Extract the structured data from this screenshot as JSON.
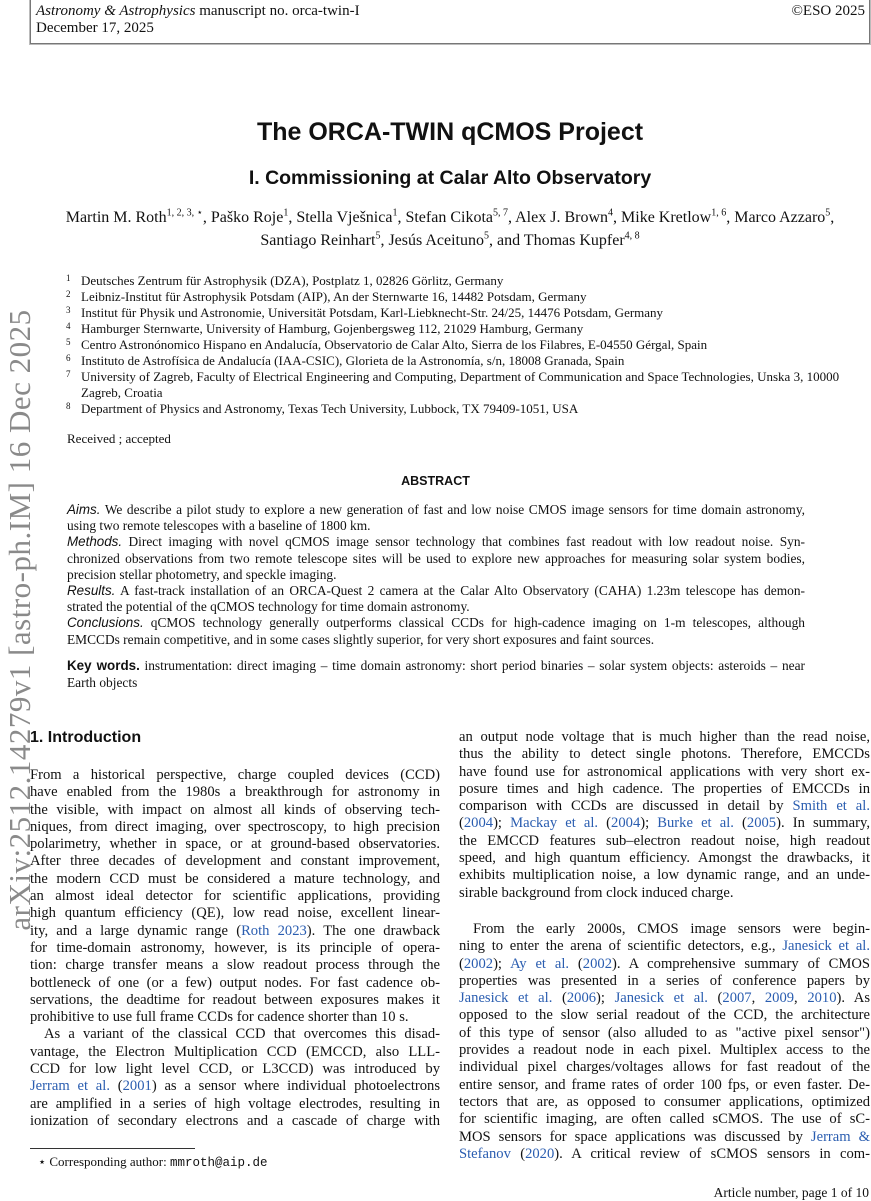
{
  "header": {
    "journal": "Astronomy & Astrophysics",
    "manuscript": " manuscript no. orca-twin-I",
    "date": "December 17, 2025",
    "copyright": "©ESO 2025"
  },
  "arxiv_stamp": "arXiv:2512.14279v1  [astro-ph.IM]  16 Dec 2025",
  "title": "The ORCA-TWIN qCMOS Project",
  "subtitle": "I. Commissioning at Calar Alto Observatory",
  "authors": [
    {
      "name": "Martin M. Roth",
      "aff": "1, 2, 3, ⋆"
    },
    {
      "name": "Paško Roje",
      "aff": "1"
    },
    {
      "name": "Stella Vješnica",
      "aff": "1"
    },
    {
      "name": "Stefan Cikota",
      "aff": "5, 7"
    },
    {
      "name": "Alex J. Brown",
      "aff": "4"
    },
    {
      "name": "Mike Kretlow",
      "aff": "1, 6"
    },
    {
      "name": "Marco Azzaro",
      "aff": "5"
    },
    {
      "name": "Santiago Reinhart",
      "aff": "5"
    },
    {
      "name": "Jesús Aceituno",
      "aff": "5"
    },
    {
      "name": "and Thomas Kupfer",
      "aff": "4, 8"
    }
  ],
  "affiliations": [
    {
      "n": "1",
      "text": "Deutsches Zentrum für Astrophysik (DZA), Postplatz 1, 02826 Görlitz, Germany"
    },
    {
      "n": "2",
      "text": "Leibniz-Institut für Astrophysik Potsdam (AIP), An der Sternwarte 16, 14482 Potsdam, Germany"
    },
    {
      "n": "3",
      "text": "Institut für Physik und Astronomie, Universität Potsdam, Karl-Liebknecht-Str. 24/25, 14476 Potsdam, Germany"
    },
    {
      "n": "4",
      "text": "Hamburger Sternwarte, University of Hamburg, Gojenbergsweg 112, 21029 Hamburg, Germany"
    },
    {
      "n": "5",
      "text": "Centro Astronónomico Hispano en Andalucía, Observatorio de Calar Alto, Sierra de los Filabres, E-04550 Gérgal, Spain"
    },
    {
      "n": "6",
      "text": "Instituto de Astrofísica de Andalucía (IAA-CSIC), Glorieta de la Astronomía, s/n, 18008 Granada, Spain"
    },
    {
      "n": "7",
      "text": "University of Zagreb, Faculty of Electrical Engineering and Computing, Department of Communication and Space Technologies, Unska 3, 10000 Zagreb, Croatia"
    },
    {
      "n": "8",
      "text": "Department of Physics and Astronomy, Texas Tech University, Lubbock, TX 79409-1051, USA"
    }
  ],
  "received": "Received ; accepted",
  "abstract_heading": "ABSTRACT",
  "abstract_lines": [
    {
      "s": [
        {
          "t": "Aims.",
          "k": "lbl"
        },
        {
          "t": " We describe a pilot study to explore a new generation of fast and low noise CMOS image sensors for time domain astronomy,"
        }
      ]
    },
    {
      "last": true,
      "s": [
        {
          "t": "using two remote telescopes with a baseline of 1800 km."
        }
      ]
    },
    {
      "s": [
        {
          "t": "Methods.",
          "k": "lbl"
        },
        {
          "t": " Direct imaging with novel qCMOS image sensor technology that combines fast readout with low readout noise. Syn-"
        }
      ]
    },
    {
      "s": [
        {
          "t": "chronized observations from two remote telescope sites will be used to explore new approaches for measuring solar system bodies,"
        }
      ]
    },
    {
      "last": true,
      "s": [
        {
          "t": "precision stellar photometry, and speckle imaging."
        }
      ]
    },
    {
      "s": [
        {
          "t": "Results.",
          "k": "lbl"
        },
        {
          "t": " A fast-track installation of an ORCA-Quest 2 camera at the Calar Alto Observatory (CAHA) 1.23m telescope has demon-"
        }
      ]
    },
    {
      "last": true,
      "s": [
        {
          "t": "strated the potential of the qCMOS technology for time domain astronomy."
        }
      ]
    },
    {
      "s": [
        {
          "t": "Conclusions.",
          "k": "lbl"
        },
        {
          "t": " qCMOS technology generally outperforms classical CCDs for high-cadence imaging on 1-m telescopes, although"
        }
      ]
    },
    {
      "last": true,
      "s": [
        {
          "t": "EMCCDs remain competitive, and in some cases slightly superior, for very short exposures and faint sources."
        }
      ]
    }
  ],
  "keywords_lines": [
    {
      "s": [
        {
          "t": "Key words.",
          "k": "kw"
        },
        {
          "t": "  instrumentation: direct imaging – time domain astronomy: short period binaries – solar system objects: asteroids – near"
        }
      ]
    },
    {
      "last": true,
      "s": [
        {
          "t": "Earth objects"
        }
      ]
    }
  ],
  "section_heading": "1. Introduction",
  "left_column": [
    {
      "s": [
        {
          "t": "From a historical perspective, charge coupled devices (CCD)"
        }
      ]
    },
    {
      "s": [
        {
          "t": "have enabled from the 1980s a breakthrough for astronomy in"
        }
      ]
    },
    {
      "s": [
        {
          "t": "the visible, with impact on almost all kinds of observing tech-"
        }
      ]
    },
    {
      "s": [
        {
          "t": "niques, from direct imaging, over spectroscopy, to high precision"
        }
      ]
    },
    {
      "s": [
        {
          "t": "polarimetry, whether in space, or at ground-based observatories."
        }
      ]
    },
    {
      "s": [
        {
          "t": "After three decades of development and constant improvement,"
        }
      ]
    },
    {
      "s": [
        {
          "t": "the modern CCD must be considered a mature technology, and"
        }
      ]
    },
    {
      "s": [
        {
          "t": "an almost ideal detector for scientific applications, providing"
        }
      ]
    },
    {
      "s": [
        {
          "t": "high quantum efficiency (QE), low read noise, excellent linear-"
        }
      ]
    },
    {
      "s": [
        {
          "t": "ity, and a large dynamic range ("
        },
        {
          "t": "Roth 2023",
          "k": "link"
        },
        {
          "t": "). The one drawback"
        }
      ]
    },
    {
      "s": [
        {
          "t": "for time-domain astronomy, however, is its principle of opera-"
        }
      ]
    },
    {
      "s": [
        {
          "t": "tion: charge transfer means a slow readout process through the"
        }
      ]
    },
    {
      "s": [
        {
          "t": "bottleneck of one (or a few) output nodes. For fast cadence ob-"
        }
      ]
    },
    {
      "s": [
        {
          "t": "servations, the deadtime for readout between exposures makes it"
        }
      ]
    },
    {
      "last": true,
      "s": [
        {
          "t": "prohibitive to use full frame CCDs for cadence shorter than 10 s."
        }
      ]
    },
    {
      "ind": true,
      "s": [
        {
          "t": "As a variant of the classical CCD that overcomes this disad-"
        }
      ]
    },
    {
      "s": [
        {
          "t": "vantage, the Electron Multiplication CCD (EMCCD, also LLL-"
        }
      ]
    },
    {
      "s": [
        {
          "t": "CCD for low light level CCD, or L3CCD) was introduced by"
        }
      ]
    },
    {
      "s": [
        {
          "t": "Jerram et al.",
          "k": "link"
        },
        {
          "t": " ("
        },
        {
          "t": "2001",
          "k": "link"
        },
        {
          "t": ") as a sensor where individual photoelectrons"
        }
      ]
    },
    {
      "s": [
        {
          "t": "are amplified in a series of high voltage electrodes, resulting in"
        }
      ]
    },
    {
      "s": [
        {
          "t": "ionization of secondary electrons and a cascade of charge with"
        }
      ]
    }
  ],
  "right_column": [
    {
      "s": [
        {
          "t": "an output node voltage that is much higher than the read noise,"
        }
      ]
    },
    {
      "s": [
        {
          "t": "thus the ability to detect single photons. Therefore, EMCCDs"
        }
      ]
    },
    {
      "s": [
        {
          "t": "have found use for astronomical applications with very short ex-"
        }
      ]
    },
    {
      "s": [
        {
          "t": "posure times and high cadence. The properties of EMCCDs in"
        }
      ]
    },
    {
      "s": [
        {
          "t": "comparison with CCDs are discussed in detail by "
        },
        {
          "t": "Smith et al.",
          "k": "link"
        }
      ]
    },
    {
      "s": [
        {
          "t": "("
        },
        {
          "t": "2004",
          "k": "link"
        },
        {
          "t": "); "
        },
        {
          "t": "Mackay et al.",
          "k": "link"
        },
        {
          "t": " ("
        },
        {
          "t": "2004",
          "k": "link"
        },
        {
          "t": "); "
        },
        {
          "t": "Burke et al.",
          "k": "link"
        },
        {
          "t": " ("
        },
        {
          "t": "2005",
          "k": "link"
        },
        {
          "t": "). In summary,"
        }
      ]
    },
    {
      "s": [
        {
          "t": "the EMCCD features sub–electron readout noise, high readout"
        }
      ]
    },
    {
      "s": [
        {
          "t": "speed, and high quantum efficiency. Amongst the drawbacks, it"
        }
      ]
    },
    {
      "s": [
        {
          "t": "exhibits multiplication noise, a low dynamic range, and an unde-"
        }
      ]
    },
    {
      "last": true,
      "gapAfter": true,
      "s": [
        {
          "t": "sirable background from clock induced charge."
        }
      ]
    },
    {
      "ind": true,
      "s": [
        {
          "t": "From the early 2000s, CMOS image sensors were begin-"
        }
      ]
    },
    {
      "s": [
        {
          "t": "ning to enter the arena of scientific detectors, e.g., "
        },
        {
          "t": "Janesick et al.",
          "k": "link"
        }
      ]
    },
    {
      "s": [
        {
          "t": "("
        },
        {
          "t": "2002",
          "k": "link"
        },
        {
          "t": "); "
        },
        {
          "t": "Ay et al.",
          "k": "link"
        },
        {
          "t": " ("
        },
        {
          "t": "2002",
          "k": "link"
        },
        {
          "t": "). A comprehensive summary of CMOS"
        }
      ]
    },
    {
      "s": [
        {
          "t": "properties was presented in a series of conference papers by"
        }
      ]
    },
    {
      "s": [
        {
          "t": "Janesick et al.",
          "k": "link"
        },
        {
          "t": " ("
        },
        {
          "t": "2006",
          "k": "link"
        },
        {
          "t": "); "
        },
        {
          "t": "Janesick et al.",
          "k": "link"
        },
        {
          "t": " ("
        },
        {
          "t": "2007",
          "k": "link"
        },
        {
          "t": ", "
        },
        {
          "t": "2009",
          "k": "link"
        },
        {
          "t": ", "
        },
        {
          "t": "2010",
          "k": "link"
        },
        {
          "t": "). As"
        }
      ]
    },
    {
      "s": [
        {
          "t": "opposed to the slow serial readout of the CCD, the architecture"
        }
      ]
    },
    {
      "s": [
        {
          "t": "of this type of sensor (also alluded to as \"active pixel sensor\")"
        }
      ]
    },
    {
      "s": [
        {
          "t": "provides a readout node in each pixel. Multiplex access to the"
        }
      ]
    },
    {
      "s": [
        {
          "t": "individual pixel charges/voltages allows for fast readout of the"
        }
      ]
    },
    {
      "s": [
        {
          "t": "entire sensor, and frame rates of order 100 fps, or even faster. De-"
        }
      ]
    },
    {
      "s": [
        {
          "t": "tectors that are, as opposed to consumer applications, optimized"
        }
      ]
    },
    {
      "s": [
        {
          "t": "for scientific imaging, are often called sCMOS. The use of sC-"
        }
      ]
    },
    {
      "s": [
        {
          "t": "MOS sensors for space applications was discussed by "
        },
        {
          "t": "Jerram &",
          "k": "link"
        }
      ]
    },
    {
      "s": [
        {
          "t": "Stefanov",
          "k": "link"
        },
        {
          "t": " ("
        },
        {
          "t": "2020",
          "k": "link"
        },
        {
          "t": "). A critical review of sCMOS sensors in com-"
        }
      ]
    }
  ],
  "footnote": {
    "marker": "⋆",
    "label": " Corresponding author: ",
    "email": "mmroth@aip.de"
  },
  "footer": "Article number, page 1 of 10",
  "colors": {
    "link": "#2a5db0",
    "stamp": "#8a8a8a"
  }
}
